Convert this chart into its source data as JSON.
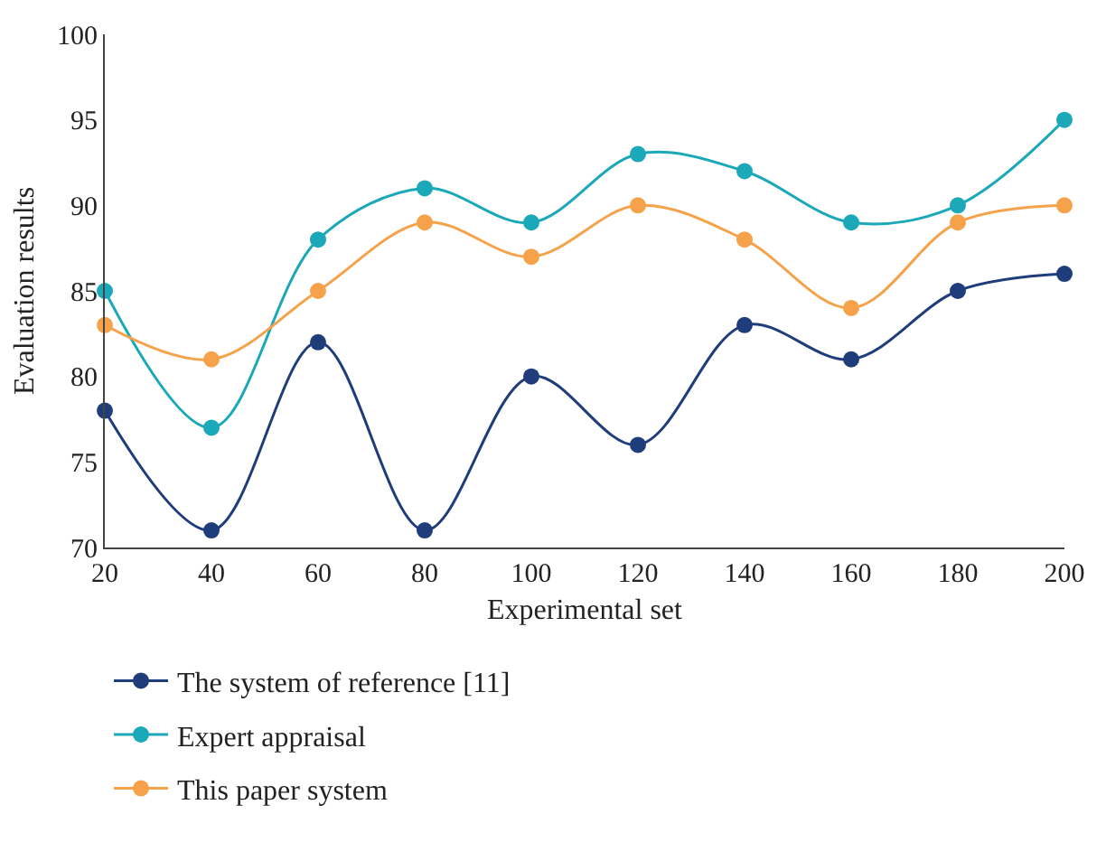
{
  "chart_data": {
    "type": "line",
    "xlabel": "Experimental set",
    "ylabel": "Evaluation results",
    "x": [
      20,
      40,
      60,
      80,
      100,
      120,
      140,
      160,
      180,
      200
    ],
    "series": [
      {
        "name": "The system of reference [11]",
        "color": "#1f3d7a",
        "values": [
          78,
          71,
          82,
          71,
          80,
          76,
          83,
          81,
          85,
          86
        ]
      },
      {
        "name": "Expert appraisal",
        "color": "#1ba8b8",
        "values": [
          85,
          77,
          88,
          91,
          89,
          93,
          92,
          89,
          90,
          95
        ]
      },
      {
        "name": "This paper system",
        "color": "#f5a24b",
        "values": [
          83,
          81,
          85,
          89,
          87,
          90,
          88,
          84,
          89,
          90
        ]
      }
    ],
    "xlim": [
      20,
      200
    ],
    "xticks": [
      20,
      40,
      60,
      80,
      100,
      120,
      140,
      160,
      180,
      200
    ],
    "ylim": [
      70,
      100
    ],
    "yticks": [
      70,
      75,
      80,
      85,
      90,
      95,
      100
    ],
    "grid": false,
    "legend": "bottom",
    "marker": "circle",
    "line_style": "solid"
  }
}
